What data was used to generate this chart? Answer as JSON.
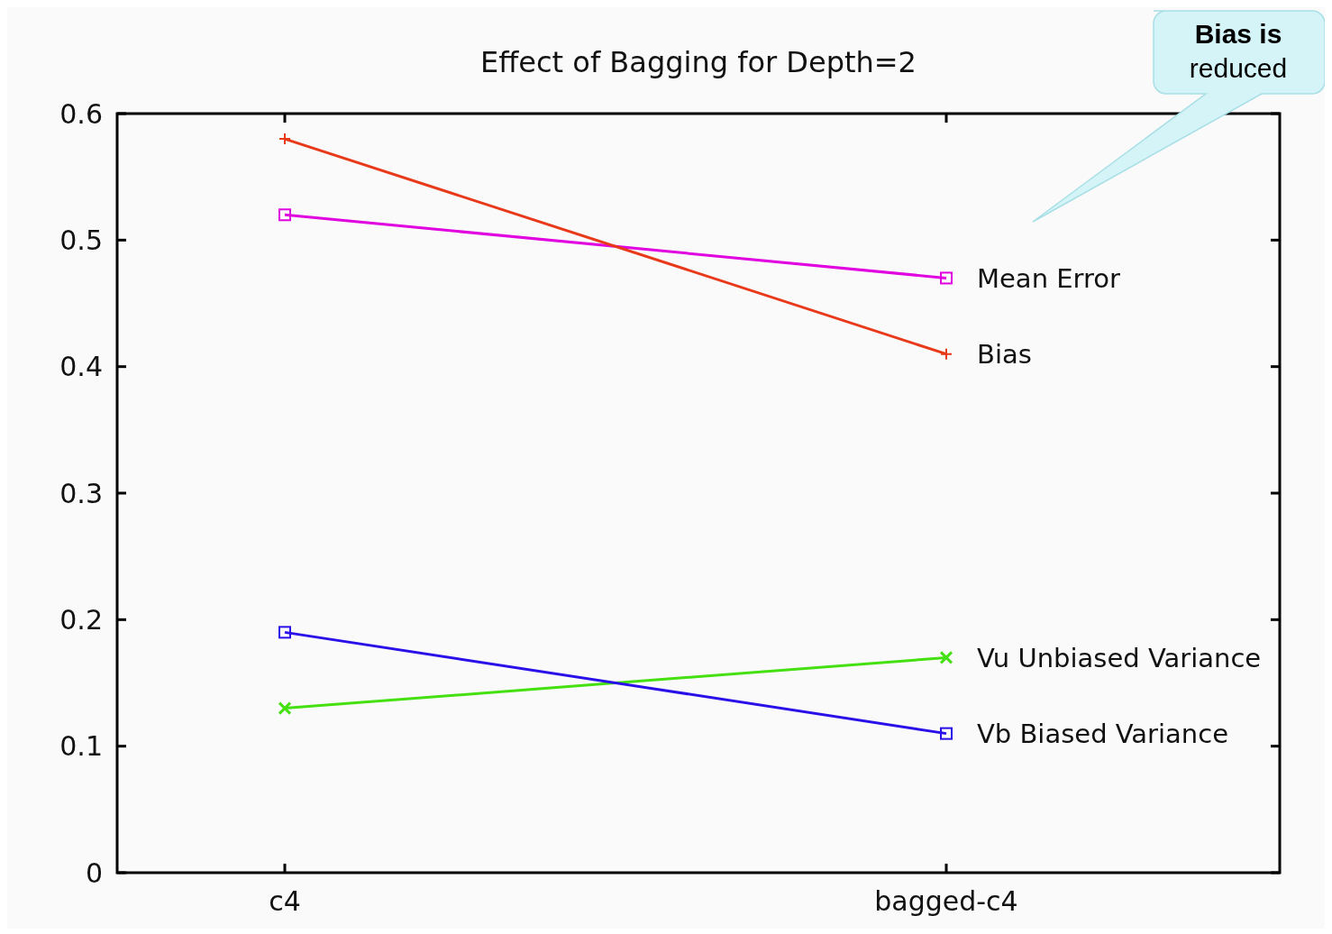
{
  "chart_data": {
    "type": "line",
    "title": "Effect of Bagging for Depth=2",
    "categories": [
      "c4",
      "bagged-c4"
    ],
    "series": [
      {
        "name": "Mean Error",
        "color": "#e000e0",
        "values": [
          0.52,
          0.47
        ],
        "marker": "square"
      },
      {
        "name": "Bias",
        "color": "#e83a1a",
        "values": [
          0.58,
          0.41
        ],
        "marker": "cross"
      },
      {
        "name": "Vu Unbiased Variance",
        "color": "#44e010",
        "values": [
          0.13,
          0.17
        ],
        "marker": "x"
      },
      {
        "name": "Vb Biased Variance",
        "color": "#2a10e8",
        "values": [
          0.19,
          0.11
        ],
        "marker": "square"
      }
    ],
    "ylim": [
      0,
      0.6
    ],
    "yticks": [
      0,
      0.1,
      0.2,
      0.3,
      0.4,
      0.5,
      0.6
    ],
    "grid": false,
    "line_style": "solid",
    "annotations": [
      "Bias is reduced"
    ]
  }
}
